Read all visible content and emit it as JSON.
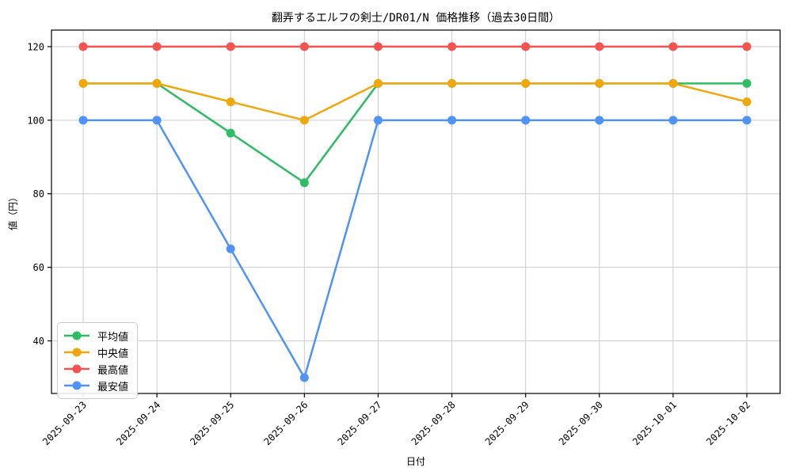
{
  "chart_data": {
    "type": "line",
    "title": "翻弄するエルフの剣士/DR01/N 価格推移（過去30日間）",
    "xlabel": "日付",
    "ylabel": "値（円）",
    "categories": [
      "2025-09-23",
      "2025-09-24",
      "2025-09-25",
      "2025-09-26",
      "2025-09-27",
      "2025-09-28",
      "2025-09-29",
      "2025-09-30",
      "2025-10-01",
      "2025-10-02"
    ],
    "series": [
      {
        "name": "平均値",
        "color": "#2ebd62",
        "values": [
          110,
          110,
          96.5,
          83,
          110,
          110,
          110,
          110,
          110,
          110
        ]
      },
      {
        "name": "中央値",
        "color": "#f0a70c",
        "values": [
          110,
          110,
          105,
          100,
          110,
          110,
          110,
          110,
          110,
          105
        ]
      },
      {
        "name": "最高値",
        "color": "#f4534f",
        "values": [
          120,
          120,
          120,
          120,
          120,
          120,
          120,
          120,
          120,
          120
        ]
      },
      {
        "name": "最安値",
        "color": "#4f93f6",
        "values": [
          100,
          100,
          65,
          30,
          100,
          100,
          100,
          100,
          100,
          100
        ]
      }
    ],
    "yticks": [
      40,
      60,
      80,
      100,
      120
    ],
    "ylim": [
      25.7,
      124.5
    ],
    "grid": true,
    "grid_color": "#cccccc",
    "frame_color": "#000000",
    "legend_position": "lower left"
  }
}
